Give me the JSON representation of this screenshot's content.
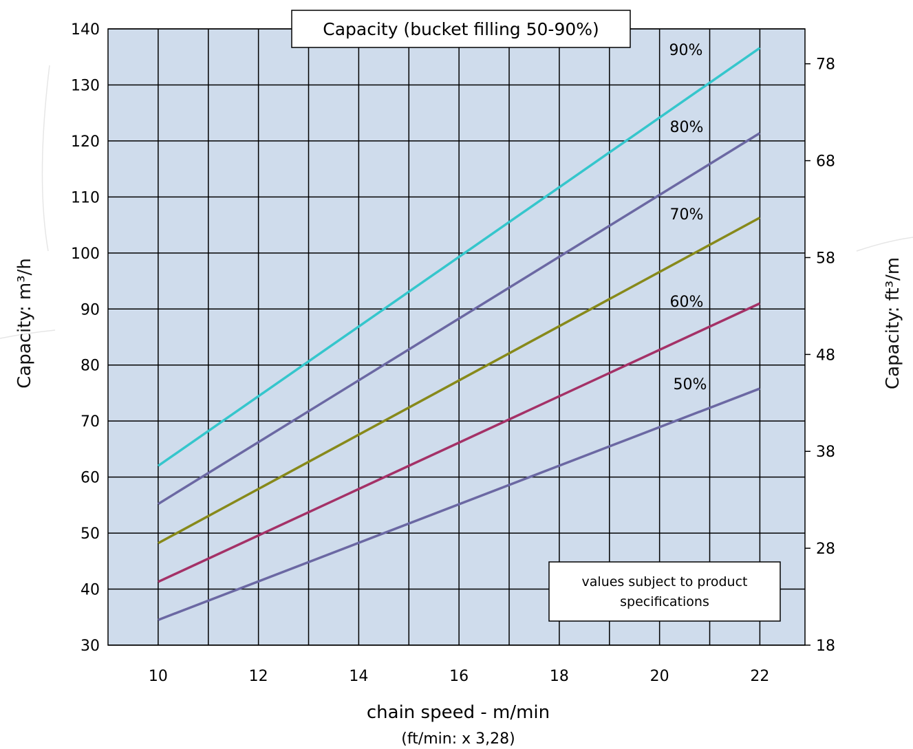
{
  "chart_data": {
    "type": "line",
    "title": "Capacity (bucket filling 50-90%)",
    "xlabel": "chain speed - m/min",
    "xlabel_sub": "(ft/min: x 3,28)",
    "ylabel": "Capacity: m³/h",
    "ylabel_right": "Capacity: ft³/m",
    "xlim": [
      9,
      22.9
    ],
    "ylim": [
      30,
      140
    ],
    "x_ticks": [
      10,
      12,
      14,
      16,
      18,
      20,
      22
    ],
    "y_ticks": [
      30,
      40,
      50,
      60,
      70,
      80,
      90,
      100,
      110,
      120,
      130,
      140
    ],
    "y_right_ticks": [
      18,
      28,
      38,
      48,
      58,
      68,
      78
    ],
    "y_right_lim": [
      18,
      81.6
    ],
    "grid": true,
    "plot_background": "#cfdcec",
    "note": "values subject to product specifications",
    "series": [
      {
        "name": "90%",
        "color": "#35c6cc",
        "x": [
          10,
          22
        ],
        "y": [
          62.0,
          136.6
        ]
      },
      {
        "name": "80%",
        "color": "#6b68a3",
        "x": [
          10,
          22
        ],
        "y": [
          55.2,
          121.4
        ]
      },
      {
        "name": "70%",
        "color": "#87891a",
        "x": [
          10,
          22
        ],
        "y": [
          48.2,
          106.3
        ]
      },
      {
        "name": "60%",
        "color": "#a43167",
        "x": [
          10,
          22
        ],
        "y": [
          41.3,
          91.0
        ]
      },
      {
        "name": "50%",
        "color": "#6b68a3",
        "x": [
          10,
          22
        ],
        "y": [
          34.5,
          75.8
        ]
      }
    ]
  }
}
